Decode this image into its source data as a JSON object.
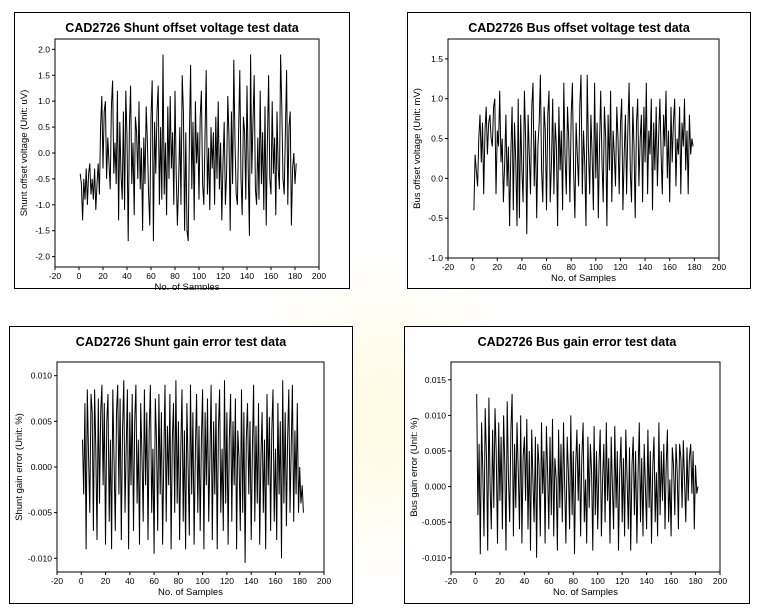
{
  "chart_data": [
    {
      "type": "line",
      "title": "CAD2726 Shunt offset voltage test data",
      "xlabel": "No. of Samples",
      "ylabel": "Shunt offset voltage (Unit: uV)",
      "xlim": [
        -20,
        200
      ],
      "ylim": [
        -2.2,
        2.2
      ],
      "xticks": [
        -20,
        0,
        20,
        40,
        60,
        80,
        100,
        120,
        140,
        160,
        180,
        200
      ],
      "yticks": [
        "2.0",
        "1.5",
        "1.0",
        "0.5",
        "0.0",
        "-0.5",
        "-1.0",
        "-1.5",
        "-2.0"
      ],
      "x_start": 1,
      "x_step": 1,
      "values": [
        -0.4,
        -0.6,
        -1.3,
        -0.5,
        -0.9,
        -0.3,
        -1.0,
        -0.4,
        -0.2,
        -0.8,
        -0.5,
        -0.9,
        -0.3,
        -1.1,
        -0.6,
        -0.2,
        -0.8,
        0.5,
        1.1,
        -0.3,
        0.8,
        1.0,
        -0.5,
        0.3,
        -0.2,
        -0.7,
        0.9,
        1.4,
        -0.4,
        0.2,
        -0.6,
        1.2,
        -1.3,
        0.6,
        -0.4,
        -0.9,
        0.8,
        -1.1,
        1.2,
        0.3,
        -1.7,
        0.5,
        1.3,
        -0.6,
        0.2,
        -1.2,
        0.7,
        0.4,
        -0.5,
        1.0,
        -0.7,
        0.1,
        -1.5,
        0.3,
        -0.6,
        0.9,
        0.2,
        -0.8,
        -1.4,
        0.7,
        1.4,
        -1.7,
        0.6,
        -0.4,
        0.8,
        1.3,
        -1.0,
        0.5,
        -0.9,
        1.9,
        -0.8,
        0.2,
        -1.2,
        0.9,
        -0.5,
        1.1,
        -0.3,
        0.4,
        -1.0,
        1.2,
        -0.4,
        -1.4,
        -0.6,
        0.5,
        -1.0,
        1.5,
        0.8,
        -1.5,
        0.4,
        -1.5,
        -1.7,
        0.3,
        1.7,
        -0.7,
        0.6,
        -1.3,
        1.0,
        -0.2,
        0.4,
        -0.9,
        0.7,
        1.2,
        -0.6,
        -1.0,
        0.3,
        1.6,
        -0.8,
        0.1,
        -1.1,
        0.5,
        -0.3,
        0.4,
        -1.0,
        0.7,
        -0.5,
        1.0,
        -0.7,
        0.2,
        -1.3,
        -0.2,
        0.6,
        -1.0,
        -0.4,
        1.1,
        0.3,
        -1.5,
        0.8,
        -0.6,
        1.8,
        0.2,
        -0.8,
        -1.0,
        0.4,
        1.6,
        -0.5,
        -1.2,
        0.7,
        0.4,
        -0.9,
        1.3,
        -0.3,
        -1.6,
        1.9,
        -0.4,
        0.6,
        1.5,
        -0.7,
        -1.0,
        0.3,
        -0.9,
        1.2,
        -0.6,
        0.4,
        -1.1,
        0.9,
        -1.4,
        0.2,
        1.5,
        -0.5,
        -0.8,
        1.0,
        -0.4,
        0.3,
        -1.2,
        0.8,
        -0.3,
        -0.7,
        1.9,
        0.9,
        -0.5,
        -0.8,
        0.4,
        1.6,
        -1.0,
        0.5,
        0.8,
        -1.4,
        -0.3,
        0.0,
        -0.6,
        -0.2
      ]
    },
    {
      "type": "line",
      "title": "CAD2726 Bus offset voltage test data",
      "xlabel": "No. of Samples",
      "ylabel": "Bus offset voltage (Unit: mV)",
      "xlim": [
        -20,
        200
      ],
      "ylim": [
        -1.0,
        1.75
      ],
      "xticks": [
        -20,
        0,
        20,
        40,
        60,
        80,
        100,
        120,
        140,
        160,
        180,
        200
      ],
      "yticks": [
        "1.5",
        "1.0",
        "0.5",
        "0.0",
        "-0.5",
        "-1.0"
      ],
      "x_start": 1,
      "x_step": 1,
      "values": [
        -0.4,
        0.3,
        0.1,
        -0.1,
        0.5,
        0.8,
        0.2,
        0.7,
        -0.2,
        0.6,
        0.9,
        0.3,
        0.7,
        0.8,
        0.5,
        0.4,
        0.9,
        1.0,
        -0.2,
        0.6,
        0.4,
        1.1,
        0.2,
        0.5,
        -0.3,
        0.2,
        0.8,
        -0.1,
        0.4,
        -0.6,
        0.3,
        0.9,
        -0.4,
        0.7,
        0.2,
        -0.6,
        1.0,
        -0.5,
        0.8,
        0.1,
        -0.3,
        1.1,
        0.5,
        -0.7,
        0.8,
        0.3,
        -0.2,
        0.9,
        1.2,
        -0.1,
        0.6,
        -0.5,
        0.4,
        0.7,
        1.3,
        0.1,
        -0.3,
        0.9,
        0.6,
        -0.4,
        0.8,
        1.1,
        -0.3,
        0.2,
        1.0,
        -0.2,
        0.7,
        0.4,
        -0.6,
        0.9,
        0.1,
        0.6,
        -0.4,
        1.2,
        0.3,
        -0.2,
        0.9,
        0.5,
        -0.3,
        0.8,
        1.2,
        0.1,
        -0.5,
        0.7,
        0.3,
        -0.1,
        0.9,
        1.3,
        -0.2,
        0.6,
        0.2,
        -0.6,
        1.3,
        0.4,
        -0.2,
        0.8,
        0.3,
        -0.4,
        1.2,
        0.0,
        0.7,
        -0.5,
        0.4,
        1.1,
        0.2,
        -0.3,
        0.9,
        0.5,
        -0.6,
        0.8,
        0.1,
        1.1,
        -0.3,
        0.6,
        0.3,
        -0.1,
        0.9,
        0.5,
        -0.2,
        0.7,
        1.0,
        -0.4,
        0.3,
        0.8,
        -0.2,
        0.6,
        1.2,
        0.1,
        -0.3,
        0.9,
        0.4,
        -0.5,
        0.7,
        1.0,
        -0.1,
        0.5,
        0.8,
        -0.3,
        0.9,
        0.2,
        1.2,
        -0.2,
        0.6,
        0.3,
        1.0,
        -0.4,
        0.7,
        0.1,
        0.9,
        -0.1,
        0.5,
        1.0,
        0.3,
        -0.2,
        0.8,
        0.4,
        1.1,
        0.0,
        0.6,
        -0.3,
        0.9,
        0.2,
        0.7,
        1.0,
        -0.1,
        0.5,
        0.3,
        0.9,
        -0.2,
        0.7,
        0.4,
        1.0,
        0.1,
        0.6,
        -0.2,
        0.8,
        0.3,
        0.5,
        0.4
      ]
    },
    {
      "type": "line",
      "title": "CAD2726 Shunt gain error test data",
      "xlabel": "No. of Samples",
      "ylabel": "Shunt gain error (Unit: %)",
      "xlim": [
        -20,
        200
      ],
      "ylim": [
        -0.0115,
        0.0115
      ],
      "xticks": [
        -20,
        0,
        20,
        40,
        60,
        80,
        100,
        120,
        140,
        160,
        180,
        200
      ],
      "yticks": [
        "0.010",
        "0.005",
        "0.000",
        "-0.005",
        "-0.010"
      ],
      "x_start": 1,
      "x_step": 1,
      "values": [
        0.003,
        -0.003,
        0.007,
        -0.009,
        0.0085,
        0.001,
        -0.005,
        0.008,
        0.006,
        -0.007,
        0.0085,
        0.002,
        -0.008,
        0.0075,
        -0.004,
        0.006,
        0.009,
        -0.002,
        0.007,
        -0.0085,
        0.005,
        0.008,
        -0.006,
        0.003,
        -0.009,
        0.0085,
        0.001,
        -0.007,
        0.006,
        0.009,
        -0.003,
        0.0075,
        -0.008,
        0.004,
        0.0095,
        -0.005,
        0.002,
        0.0085,
        -0.009,
        0.006,
        -0.002,
        0.008,
        -0.007,
        0.005,
        0.009,
        -0.004,
        0.003,
        -0.0085,
        0.007,
        0.001,
        -0.006,
        0.0085,
        -0.002,
        0.006,
        -0.008,
        0.004,
        0.009,
        -0.005,
        0.002,
        -0.0095,
        0.0075,
        0.003,
        -0.007,
        0.008,
        -0.003,
        0.006,
        -0.0085,
        0.001,
        0.009,
        -0.006,
        0.0045,
        -0.002,
        0.008,
        -0.009,
        0.003,
        0.007,
        -0.005,
        0.0095,
        -0.004,
        0.005,
        -0.008,
        0.002,
        0.0085,
        -0.006,
        0.004,
        -0.009,
        0.007,
        0.0,
        -0.0075,
        0.009,
        -0.003,
        0.006,
        -0.0085,
        0.002,
        0.008,
        -0.005,
        0.0045,
        -0.007,
        0.003,
        0.0085,
        -0.009,
        0.006,
        -0.002,
        0.0075,
        -0.006,
        0.001,
        0.009,
        -0.008,
        0.005,
        -0.003,
        0.007,
        -0.009,
        0.004,
        0.0085,
        -0.005,
        0.002,
        -0.007,
        0.0095,
        -0.004,
        0.006,
        -0.0085,
        0.003,
        0.008,
        -0.006,
        0.005,
        -0.002,
        0.0075,
        -0.009,
        0.004,
        0.001,
        -0.007,
        0.0085,
        -0.005,
        0.006,
        -0.0105,
        0.003,
        0.007,
        -0.003,
        0.005,
        -0.008,
        0.002,
        0.009,
        -0.006,
        0.0045,
        -0.004,
        0.007,
        -0.0085,
        0.001,
        0.006,
        -0.005,
        0.003,
        -0.009,
        0.008,
        -0.002,
        0.0055,
        -0.007,
        0.004,
        0.0085,
        -0.006,
        0.002,
        -0.008,
        0.007,
        -0.003,
        0.005,
        -0.01,
        0.0095,
        -0.004,
        0.006,
        -0.0065,
        0.003,
        0.0085,
        -0.005,
        0.002,
        0.009,
        -0.006,
        0.004,
        -0.003,
        0.007,
        -0.005,
        0.0,
        -0.004,
        -0.002,
        -0.005
      ]
    },
    {
      "type": "line",
      "title": "CAD2726 Bus gain error test data",
      "xlabel": "No. of Samples",
      "ylabel": "Bus gain error (Unit: %)",
      "xlim": [
        -20,
        200
      ],
      "ylim": [
        -0.012,
        0.0175
      ],
      "xticks": [
        -20,
        0,
        20,
        40,
        60,
        80,
        100,
        120,
        140,
        160,
        180,
        200
      ],
      "yticks": [
        "0.015",
        "0.010",
        "0.005",
        "0.000",
        "-0.005",
        "-0.010"
      ],
      "x_start": 1,
      "x_step": 1,
      "values": [
        0.013,
        -0.004,
        0.006,
        -0.0095,
        0.009,
        0.002,
        -0.007,
        0.011,
        0.004,
        -0.009,
        0.0125,
        0.0,
        -0.006,
        0.008,
        -0.003,
        0.011,
        0.005,
        -0.008,
        0.009,
        -0.002,
        0.007,
        -0.006,
        0.01,
        0.003,
        -0.009,
        0.012,
        0.001,
        -0.005,
        0.008,
        0.013,
        -0.007,
        0.006,
        -0.003,
        0.009,
        0.002,
        -0.006,
        0.01,
        -0.008,
        0.004,
        0.007,
        -0.002,
        0.0095,
        -0.006,
        0.005,
        -0.009,
        0.008,
        0.001,
        -0.005,
        0.007,
        -0.01,
        0.006,
        0.003,
        -0.007,
        0.009,
        -0.001,
        0.005,
        -0.008,
        0.0085,
        0.002,
        -0.006,
        0.007,
        -0.004,
        0.0095,
        -0.007,
        0.004,
        0.001,
        -0.009,
        0.008,
        -0.003,
        0.006,
        -0.005,
        0.009,
        0.0,
        -0.008,
        0.007,
        0.002,
        -0.006,
        0.01,
        -0.004,
        0.005,
        -0.0095,
        0.003,
        0.008,
        -0.002,
        0.006,
        -0.007,
        0.004,
        0.009,
        -0.005,
        0.001,
        -0.008,
        0.007,
        -0.003,
        0.006,
        0.002,
        -0.009,
        0.0085,
        -0.004,
        0.005,
        -0.006,
        0.003,
        0.008,
        -0.007,
        0.001,
        0.006,
        -0.005,
        0.009,
        -0.002,
        0.004,
        -0.008,
        0.007,
        0.0,
        -0.006,
        0.0085,
        -0.003,
        0.005,
        -0.009,
        0.002,
        0.007,
        -0.005,
        0.004,
        -0.007,
        0.008,
        0.001,
        -0.006,
        0.0055,
        -0.009,
        0.003,
        0.007,
        -0.004,
        0.005,
        -0.008,
        0.002,
        0.009,
        -0.005,
        0.004,
        -0.007,
        0.006,
        0.0,
        -0.006,
        0.008,
        -0.003,
        0.005,
        -0.008,
        0.003,
        0.007,
        -0.005,
        0.002,
        -0.007,
        0.009,
        -0.004,
        0.005,
        -0.002,
        0.006,
        -0.006,
        0.003,
        0.008,
        -0.005,
        0.001,
        -0.007,
        0.0055,
        0.003,
        -0.004,
        0.006,
        0.002,
        -0.006,
        0.006,
        0.004,
        -0.003,
        0.0065,
        0.001,
        -0.005,
        0.0055,
        -0.002,
        0.004,
        0.006,
        -0.001,
        0.005,
        -0.006,
        0.003,
        -0.001,
        0.0
      ]
    }
  ]
}
